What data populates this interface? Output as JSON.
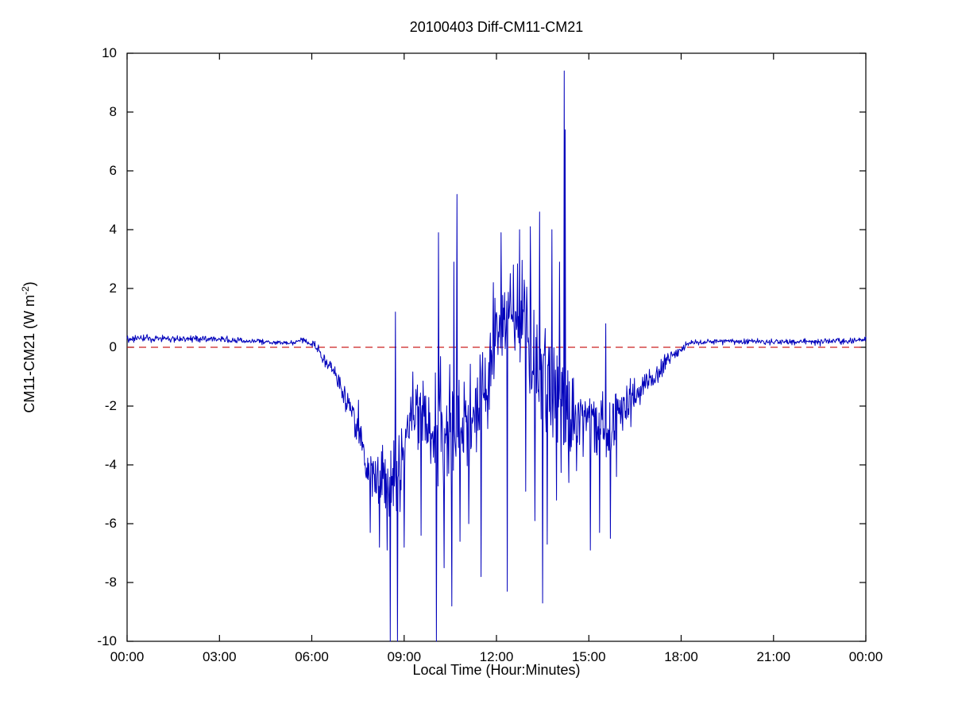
{
  "chart_data": {
    "type": "line",
    "title": "20100403 Diff-CM11-CM21",
    "xlabel": "Local Time (Hour:Minutes)",
    "ylabel": "CM11-CM21 (W m^-2)",
    "ylabel_parts": {
      "prefix": "CM11-CM21 (W m",
      "sup": "-2",
      "suffix": ")"
    },
    "xlim_hours": [
      0,
      24
    ],
    "ylim": [
      -10,
      10
    ],
    "x_ticks": [
      "00:00",
      "03:00",
      "06:00",
      "09:00",
      "12:00",
      "15:00",
      "18:00",
      "21:00",
      "00:00"
    ],
    "x_tick_hours": [
      0,
      3,
      6,
      9,
      12,
      15,
      18,
      21,
      24
    ],
    "y_ticks": [
      -10,
      -8,
      -6,
      -4,
      -2,
      0,
      2,
      4,
      6,
      8,
      10
    ],
    "grid": false,
    "legend": false,
    "background_color": "#ffffff",
    "axis_color": "#000000",
    "reference_line": {
      "y": 0,
      "style": "dashed",
      "color": "#cc2222"
    },
    "series": [
      {
        "name": "CM11-CM21 difference",
        "color": "#0000bb",
        "sampling": "1-minute noisy signal reconstructed from envelope (hour, mean, amplitude) plus extreme spikes (hour, value)",
        "envelope": [
          [
            0.0,
            0.3,
            0.12
          ],
          [
            3.0,
            0.28,
            0.12
          ],
          [
            4.5,
            0.18,
            0.1
          ],
          [
            5.3,
            0.15,
            0.08
          ],
          [
            5.8,
            0.25,
            0.1
          ],
          [
            6.1,
            0.05,
            0.15
          ],
          [
            6.4,
            -0.45,
            0.25
          ],
          [
            6.8,
            -0.9,
            0.35
          ],
          [
            7.1,
            -1.8,
            0.5
          ],
          [
            7.4,
            -2.3,
            0.7
          ],
          [
            7.7,
            -3.6,
            1.0
          ],
          [
            8.0,
            -4.4,
            1.2
          ],
          [
            8.4,
            -4.7,
            1.3
          ],
          [
            8.8,
            -4.2,
            1.6
          ],
          [
            9.1,
            -2.8,
            1.4
          ],
          [
            9.4,
            -2.2,
            1.2
          ],
          [
            9.8,
            -2.6,
            1.4
          ],
          [
            10.1,
            -3.2,
            2.2
          ],
          [
            10.5,
            -2.6,
            2.4
          ],
          [
            10.9,
            -2.4,
            2.0
          ],
          [
            11.3,
            -2.2,
            1.8
          ],
          [
            11.7,
            -1.2,
            1.5
          ],
          [
            12.0,
            0.6,
            1.2
          ],
          [
            12.4,
            1.2,
            1.4
          ],
          [
            12.8,
            0.8,
            1.8
          ],
          [
            13.2,
            -0.2,
            2.0
          ],
          [
            13.6,
            -1.4,
            2.2
          ],
          [
            14.0,
            -2.0,
            1.8
          ],
          [
            14.4,
            -2.4,
            1.4
          ],
          [
            14.8,
            -2.3,
            1.2
          ],
          [
            15.2,
            -2.6,
            1.4
          ],
          [
            15.6,
            -2.6,
            1.3
          ],
          [
            16.0,
            -2.2,
            1.0
          ],
          [
            16.4,
            -1.8,
            0.8
          ],
          [
            16.8,
            -1.3,
            0.6
          ],
          [
            17.2,
            -0.9,
            0.45
          ],
          [
            17.6,
            -0.45,
            0.3
          ],
          [
            18.0,
            -0.05,
            0.15
          ],
          [
            18.3,
            0.15,
            0.1
          ],
          [
            19.0,
            0.2,
            0.1
          ],
          [
            21.0,
            0.18,
            0.1
          ],
          [
            23.0,
            0.2,
            0.12
          ],
          [
            24.0,
            0.25,
            0.12
          ]
        ],
        "spikes": [
          [
            7.9,
            -6.3
          ],
          [
            8.2,
            -6.8
          ],
          [
            8.45,
            -6.9
          ],
          [
            8.55,
            -10.0
          ],
          [
            8.72,
            1.2
          ],
          [
            8.78,
            -10.0
          ],
          [
            9.0,
            -6.8
          ],
          [
            9.55,
            -6.4
          ],
          [
            10.05,
            -10.0
          ],
          [
            10.12,
            3.9
          ],
          [
            10.3,
            -7.5
          ],
          [
            10.55,
            -8.8
          ],
          [
            10.62,
            2.9
          ],
          [
            10.72,
            5.2
          ],
          [
            10.82,
            -6.6
          ],
          [
            11.1,
            -6.0
          ],
          [
            11.5,
            -7.8
          ],
          [
            11.9,
            2.2
          ],
          [
            12.15,
            3.9
          ],
          [
            12.35,
            -8.3
          ],
          [
            12.55,
            2.8
          ],
          [
            12.75,
            4.0
          ],
          [
            12.95,
            -4.9
          ],
          [
            13.1,
            4.1
          ],
          [
            13.25,
            -5.9
          ],
          [
            13.4,
            4.6
          ],
          [
            13.5,
            -8.7
          ],
          [
            13.65,
            -6.7
          ],
          [
            13.8,
            4.0
          ],
          [
            13.95,
            -5.2
          ],
          [
            14.05,
            2.9
          ],
          [
            14.2,
            9.4
          ],
          [
            14.23,
            7.4
          ],
          [
            14.35,
            -4.6
          ],
          [
            14.6,
            -4.2
          ],
          [
            15.05,
            -6.9
          ],
          [
            15.35,
            -6.3
          ],
          [
            15.55,
            0.8
          ],
          [
            15.7,
            -6.5
          ],
          [
            15.9,
            -4.4
          ]
        ]
      }
    ]
  }
}
